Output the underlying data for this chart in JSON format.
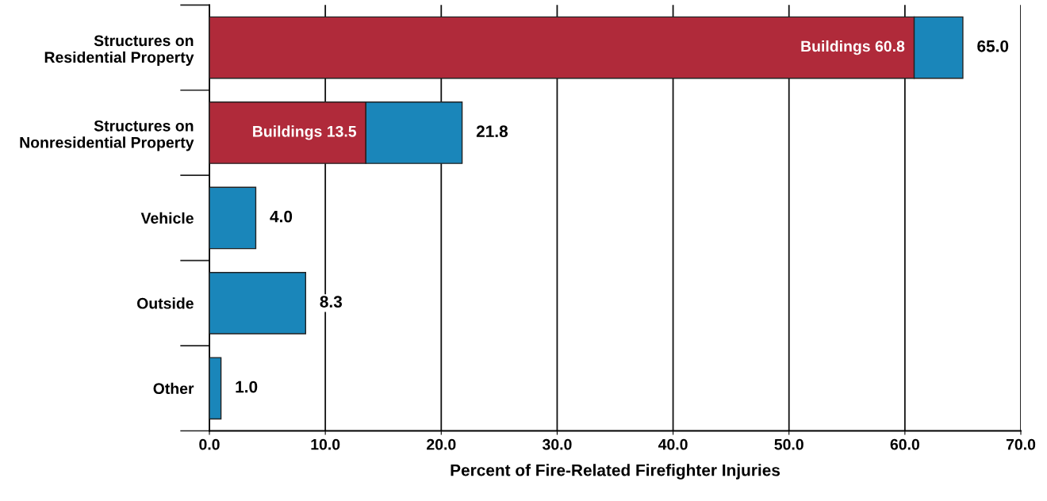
{
  "chart_data": {
    "type": "bar",
    "orientation": "horizontal",
    "stacked": true,
    "xlabel": "Percent of Fire-Related Firefighter Injuries",
    "categories": [
      "Structures on\nResidential Property",
      "Structures on\nNonresidential Property",
      "Vehicle",
      "Outside",
      "Other"
    ],
    "series": [
      {
        "color": "#b02a3a",
        "values": [
          60.8,
          13.5,
          null,
          null,
          null
        ],
        "value_labels": [
          "Buildings 60.8",
          "Buildings 13.5",
          null,
          null,
          null
        ]
      },
      {
        "color": "#1a86ba",
        "values": [
          4.2,
          8.3,
          4.0,
          8.3,
          1.0
        ]
      }
    ],
    "totals": [
      "65.0",
      "21.8",
      "4.0",
      "8.3",
      "1.0"
    ],
    "xlim": [
      0,
      70
    ],
    "xticks": [
      {
        "value": 0,
        "label": "0.0"
      },
      {
        "value": 10,
        "label": "10.0"
      },
      {
        "value": 20,
        "label": "20.0"
      },
      {
        "value": 30,
        "label": "30.0"
      },
      {
        "value": 40,
        "label": "40.0"
      },
      {
        "value": 50,
        "label": "50.0"
      },
      {
        "value": 60,
        "label": "60.0"
      },
      {
        "value": 70,
        "label": "70.0"
      }
    ],
    "grid": "x",
    "legend": false
  }
}
